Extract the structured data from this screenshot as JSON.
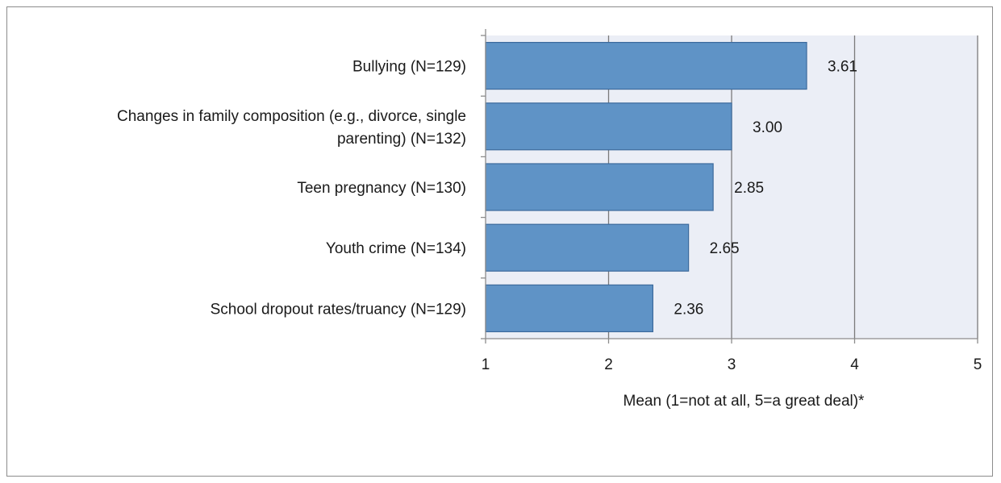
{
  "chart_data": {
    "type": "bar",
    "orientation": "horizontal",
    "categories": [
      "Bullying (N=129)",
      "Changes in family composition (e.g., divorce, single parenting) (N=132)",
      "Teen pregnancy (N=130)",
      "Youth crime (N=134)",
      "School dropout rates/truancy (N=129)"
    ],
    "category_lines": [
      [
        "Bullying (N=129)"
      ],
      [
        "Changes in family composition (e.g., divorce, single",
        "parenting) (N=132)"
      ],
      [
        "Teen pregnancy (N=130)"
      ],
      [
        "Youth crime (N=134)"
      ],
      [
        "School dropout rates/truancy (N=129)"
      ]
    ],
    "values": [
      3.61,
      3.0,
      2.85,
      2.65,
      2.36
    ],
    "value_labels": [
      "3.61",
      "3.00",
      "2.85",
      "2.65",
      "2.36"
    ],
    "xlabel": "Mean (1=not at all, 5=a great deal)*",
    "xlim": [
      1,
      5
    ],
    "xticks": [
      1,
      2,
      3,
      4,
      5
    ],
    "xtick_labels": [
      "1",
      "2",
      "3",
      "4",
      "5"
    ],
    "grid": "vertical",
    "legend": "none"
  },
  "colors": {
    "bar_fill": "#5f93c6",
    "bar_stroke": "#3c6a9c",
    "plot_background": "#ebeef6",
    "gridline": "#7a7a7a",
    "axis": "#8c8c8c",
    "text": "#1a1a1a"
  }
}
